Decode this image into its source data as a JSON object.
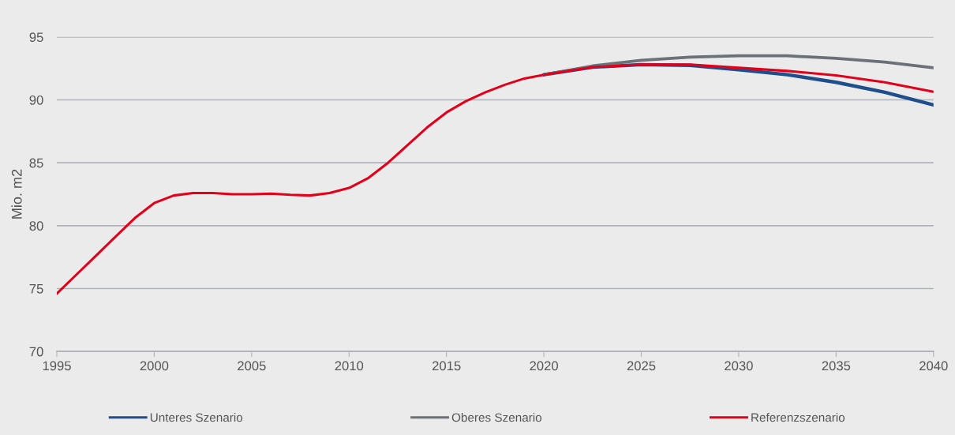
{
  "chart_data": {
    "type": "line",
    "ylabel": "Mio. m2",
    "xlim": [
      1995,
      2040
    ],
    "xticks": [
      1995,
      2000,
      2005,
      2010,
      2015,
      2020,
      2025,
      2030,
      2035,
      2040
    ],
    "ylim": [
      70,
      95
    ],
    "yticks": [
      70,
      75,
      80,
      85,
      90,
      95
    ],
    "grid": "y",
    "legend": "bottom",
    "series": [
      {
        "name": "Unteres Szenario",
        "color": "#1f4e8c",
        "x": [
          2020,
          2022.5,
          2025,
          2027.5,
          2030,
          2032.5,
          2035,
          2037.5,
          2040
        ],
        "values": [
          92.0,
          92.6,
          92.8,
          92.75,
          92.4,
          92.0,
          91.4,
          90.6,
          89.6
        ]
      },
      {
        "name": "Oberes Szenario",
        "color": "#6b7079",
        "x": [
          2020,
          2022.5,
          2025,
          2027.5,
          2030,
          2032.5,
          2035,
          2037.5,
          2040
        ],
        "values": [
          92.0,
          92.7,
          93.15,
          93.4,
          93.5,
          93.5,
          93.3,
          93.0,
          92.55
        ]
      },
      {
        "name": "Referenzszenario",
        "color": "#e3001b",
        "x": [
          1995,
          1996,
          1997,
          1998,
          1999,
          2000,
          2001,
          2002,
          2003,
          2004,
          2005,
          2006,
          2007,
          2008,
          2009,
          2010,
          2011,
          2012,
          2013,
          2014,
          2015,
          2016,
          2017,
          2018,
          2019,
          2020,
          2022.5,
          2025,
          2027.5,
          2030,
          2032.5,
          2035,
          2037.5,
          2040
        ],
        "values": [
          74.6,
          76.1,
          77.6,
          79.1,
          80.6,
          81.8,
          82.4,
          82.6,
          82.6,
          82.5,
          82.5,
          82.55,
          82.45,
          82.4,
          82.6,
          83.0,
          83.8,
          85.0,
          86.4,
          87.8,
          89.0,
          89.9,
          90.6,
          91.2,
          91.7,
          92.0,
          92.6,
          92.8,
          92.8,
          92.55,
          92.3,
          91.95,
          91.4,
          90.65
        ]
      }
    ]
  }
}
